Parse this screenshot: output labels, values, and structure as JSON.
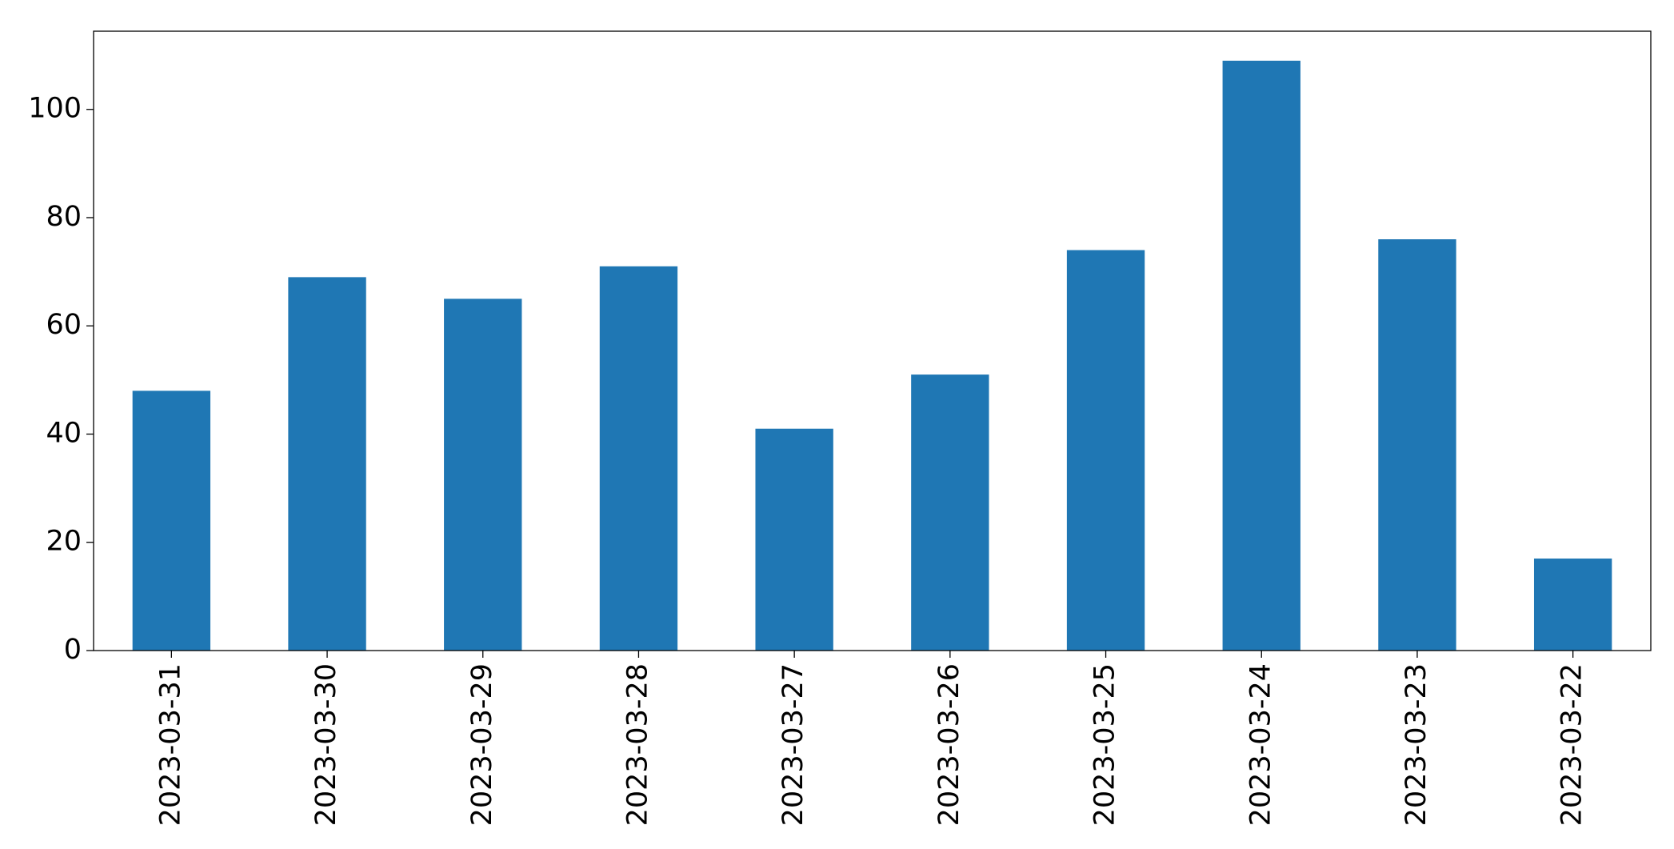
{
  "chart_data": {
    "type": "bar",
    "categories": [
      "2023-03-31",
      "2023-03-30",
      "2023-03-29",
      "2023-03-28",
      "2023-03-27",
      "2023-03-26",
      "2023-03-25",
      "2023-03-24",
      "2023-03-23",
      "2023-03-22"
    ],
    "values": [
      48,
      69,
      65,
      71,
      41,
      51,
      74,
      109,
      76,
      17
    ],
    "color": "#1f77b4",
    "ylim": [
      0,
      114.45
    ],
    "yticks": [
      0,
      20,
      40,
      60,
      80,
      100
    ],
    "grid": false
  }
}
